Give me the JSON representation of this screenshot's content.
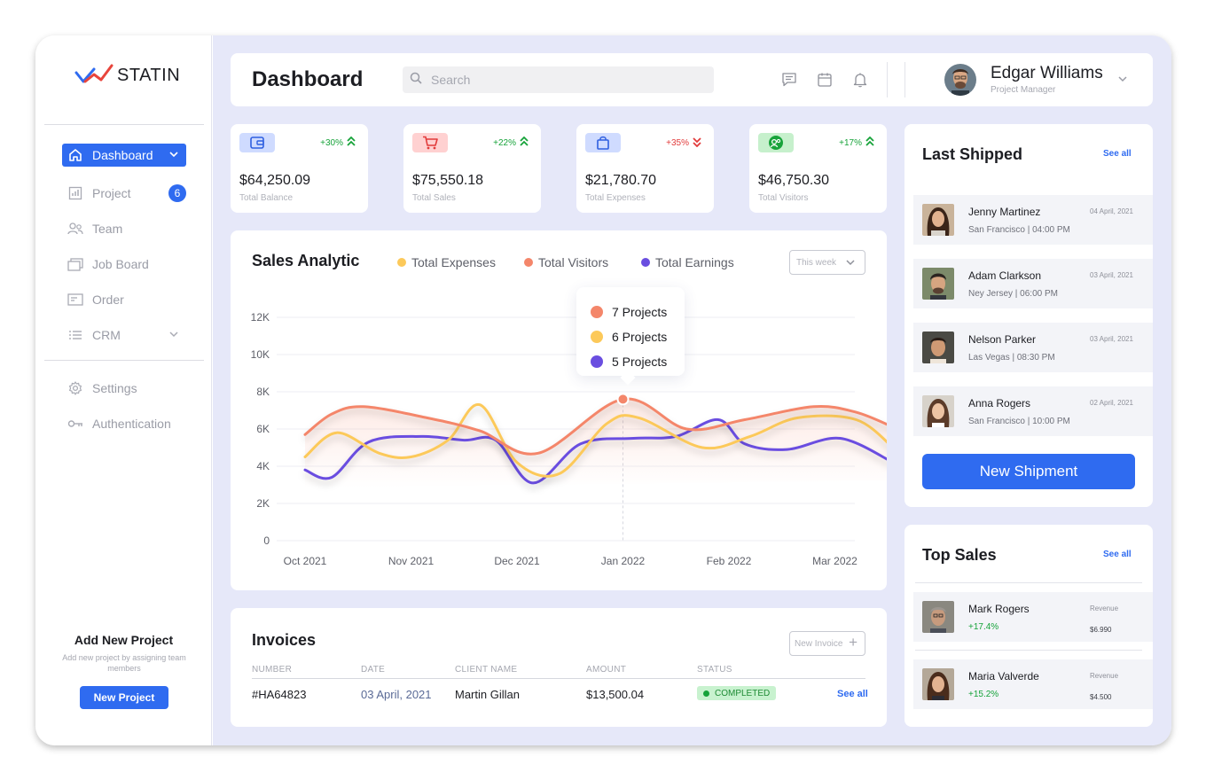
{
  "app": {
    "logo_text": "STATIN"
  },
  "sidebar": {
    "items": [
      {
        "label": "Dashboard",
        "icon": "home-icon",
        "active": true
      },
      {
        "label": "Project",
        "icon": "bar-chart-icon",
        "badge": "6"
      },
      {
        "label": "Team",
        "icon": "team-icon"
      },
      {
        "label": "Job Board",
        "icon": "job-board-icon"
      },
      {
        "label": "Order",
        "icon": "order-icon"
      },
      {
        "label": "CRM",
        "icon": "list-icon"
      },
      {
        "label": "Settings",
        "icon": "gear-icon"
      },
      {
        "label": "Authentication",
        "icon": "key-icon"
      }
    ],
    "add_project": {
      "title": "Add New Project",
      "subtitle": "Add new project by assigning team members",
      "button": "New Project"
    }
  },
  "header": {
    "title": "Dashboard",
    "search_placeholder": "Search",
    "user": {
      "name": "Edgar Williams",
      "role": "Project Manager"
    }
  },
  "stats": [
    {
      "value": "$64,250.09",
      "label": "Total Balance",
      "delta": "+30%",
      "trend": "up",
      "icon": "wallet-icon",
      "icon_bg": "#cfdbff",
      "icon_color": "#2f5fe0"
    },
    {
      "value": "$75,550.18",
      "label": "Total Sales",
      "delta": "+22%",
      "trend": "up",
      "icon": "cart-icon",
      "icon_bg": "#ffd1d1",
      "icon_color": "#e23b3b"
    },
    {
      "value": "$21,780.70",
      "label": "Total Expenses",
      "delta": "+35%",
      "trend": "down",
      "icon": "shopping-bag-icon",
      "icon_bg": "#cfdbff",
      "icon_color": "#2f5fe0"
    },
    {
      "value": "$46,750.30",
      "label": "Total Visitors",
      "delta": "+17%",
      "trend": "up",
      "icon": "visitors-icon",
      "icon_bg": "#c6f0cc",
      "icon_color": "#17a33a"
    }
  ],
  "sales": {
    "title": "Sales Analytic",
    "period": "This week",
    "legend": [
      {
        "name": "Total Expenses",
        "color": "#fcc95a"
      },
      {
        "name": "Total  Visitors",
        "color": "#f4866a"
      },
      {
        "name": "Total Earnings",
        "color": "#6a4ee0"
      }
    ],
    "tooltip": [
      {
        "label": "7 Projects",
        "color": "#f4866a"
      },
      {
        "label": "6 Projects",
        "color": "#fcc95a"
      },
      {
        "label": "5 Projects",
        "color": "#6a4ee0"
      }
    ]
  },
  "chart_data": {
    "type": "line",
    "title": "Sales Analytic",
    "x": [
      "Oct 2021",
      "Nov 2021",
      "Dec 2021",
      "Jan 2022",
      "Feb 2022",
      "Mar 2022"
    ],
    "y_ticks": [
      "0",
      "2K",
      "4K",
      "6K",
      "8K",
      "10K",
      "12K"
    ],
    "ylim": [
      0,
      12000
    ],
    "grid": true,
    "legend_position": "top",
    "series": [
      {
        "name": "Total  Visitors",
        "color": "#f4866a",
        "points": [
          [
            0,
            5700
          ],
          [
            0.25,
            6800
          ],
          [
            0.55,
            7200
          ],
          [
            1.15,
            6600
          ],
          [
            1.65,
            5900
          ],
          [
            2.2,
            4700
          ],
          [
            3.0,
            7600
          ],
          [
            3.6,
            6000
          ],
          [
            4.15,
            6500
          ],
          [
            4.8,
            7200
          ],
          [
            5.2,
            6900
          ],
          [
            5.55,
            6100
          ]
        ]
      },
      {
        "name": "Total Expenses",
        "color": "#fcc95a",
        "points": [
          [
            0,
            4500
          ],
          [
            0.3,
            5800
          ],
          [
            0.7,
            4700
          ],
          [
            1.0,
            4500
          ],
          [
            1.35,
            5400
          ],
          [
            1.65,
            7300
          ],
          [
            2.0,
            4200
          ],
          [
            2.4,
            3600
          ],
          [
            2.85,
            6300
          ],
          [
            3.15,
            6600
          ],
          [
            3.75,
            5000
          ],
          [
            4.2,
            5600
          ],
          [
            4.65,
            6600
          ],
          [
            5.2,
            6500
          ],
          [
            5.55,
            5000
          ]
        ]
      },
      {
        "name": "Total Earnings",
        "color": "#6a4ee0",
        "points": [
          [
            0,
            3800
          ],
          [
            0.25,
            3400
          ],
          [
            0.6,
            5300
          ],
          [
            1.1,
            5600
          ],
          [
            1.5,
            5400
          ],
          [
            1.8,
            5400
          ],
          [
            2.15,
            3100
          ],
          [
            2.6,
            5200
          ],
          [
            3.1,
            5500
          ],
          [
            3.5,
            5600
          ],
          [
            3.9,
            6500
          ],
          [
            4.15,
            5200
          ],
          [
            4.55,
            4900
          ],
          [
            5.05,
            5500
          ],
          [
            5.55,
            4200
          ]
        ]
      }
    ],
    "highlight": {
      "x": 3.0,
      "y": 7600
    }
  },
  "invoices": {
    "title": "Invoices",
    "new_button": "New Invoice",
    "columns": [
      "NUMBER",
      "DATE",
      "CLIENT NAME",
      "AMOUNT",
      "STATUS"
    ],
    "rows": [
      {
        "number": "#HA64823",
        "date": "03 April, 2021",
        "client": "Martin Gillan",
        "amount": "$13,500.04",
        "status": "COMPLETED",
        "link": "See all"
      }
    ]
  },
  "last_shipped": {
    "title": "Last Shipped",
    "see_all": "See all",
    "items": [
      {
        "name": "Jenny Martinez",
        "sub": "San Francisco | 04:00 PM",
        "date": "04 April, 2021"
      },
      {
        "name": "Adam Clarkson",
        "sub": "Ney Jersey | 06:00 PM",
        "date": "03 April, 2021"
      },
      {
        "name": "Nelson  Parker",
        "sub": "Las Vegas | 08:30 PM",
        "date": "03 April, 2021"
      },
      {
        "name": "Anna Rogers",
        "sub": "San Francisco | 10:00 PM",
        "date": "02 April, 2021"
      }
    ],
    "button": "New Shipment"
  },
  "top_sales": {
    "title": "Top Sales",
    "see_all": "See all",
    "items": [
      {
        "name": "Mark Rogers",
        "growth": "+17.4%",
        "rev_label": "Revenue",
        "revenue": "$6.990"
      },
      {
        "name": "Maria Valverde",
        "growth": "+15.2%",
        "rev_label": "Revenue",
        "revenue": "$4.500"
      }
    ]
  }
}
